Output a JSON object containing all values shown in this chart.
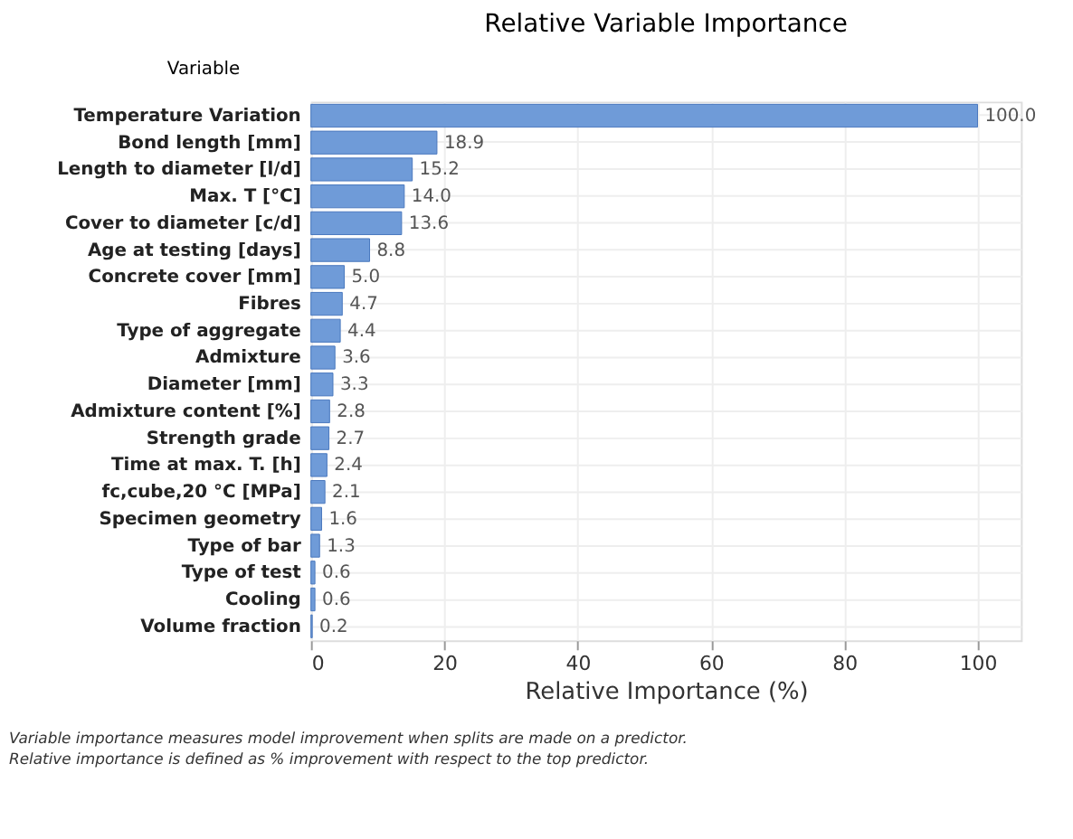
{
  "chart_data": {
    "type": "bar",
    "orientation": "horizontal",
    "title": "Relative Variable Importance",
    "ylabel": "Variable",
    "xlabel": "Relative Importance (%)",
    "categories": [
      "Temperature Variation",
      "Bond length [mm]",
      "Length to diameter [l/d]",
      "Max. T [°C]",
      "Cover to diameter [c/d]",
      "Age at testing [days]",
      "Concrete cover [mm]",
      "Fibres",
      "Type of aggregate",
      "Admixture",
      "Diameter [mm]",
      "Admixture content [%]",
      "Strength grade",
      "Time at max. T. [h]",
      "fc,cube,20 °C [MPa]",
      "Specimen geometry",
      "Type of bar",
      "Type of test",
      "Cooling",
      "Volume fraction"
    ],
    "values": [
      100.0,
      18.9,
      15.2,
      14.0,
      13.6,
      8.8,
      5.0,
      4.7,
      4.4,
      3.6,
      3.3,
      2.8,
      2.7,
      2.4,
      2.1,
      1.6,
      1.3,
      0.6,
      0.6,
      0.2
    ],
    "value_labels": [
      "100.0",
      "18.9",
      "15.2",
      "14.0",
      "13.6",
      "8.8",
      "5.0",
      "4.7",
      "4.4",
      "3.6",
      "3.3",
      "2.8",
      "2.7",
      "2.4",
      "2.1",
      "1.6",
      "1.3",
      "0.6",
      "0.6",
      "0.2"
    ],
    "color": "#6f9bd8",
    "xlim": [
      0,
      106.5
    ],
    "xticks": [
      0,
      20,
      40,
      60,
      80,
      100
    ],
    "grid": true,
    "annotations": [
      "Variable importance measures model improvement when splits are made on a predictor.",
      "Relative importance is defined as % improvement with respect to the top predictor."
    ]
  }
}
